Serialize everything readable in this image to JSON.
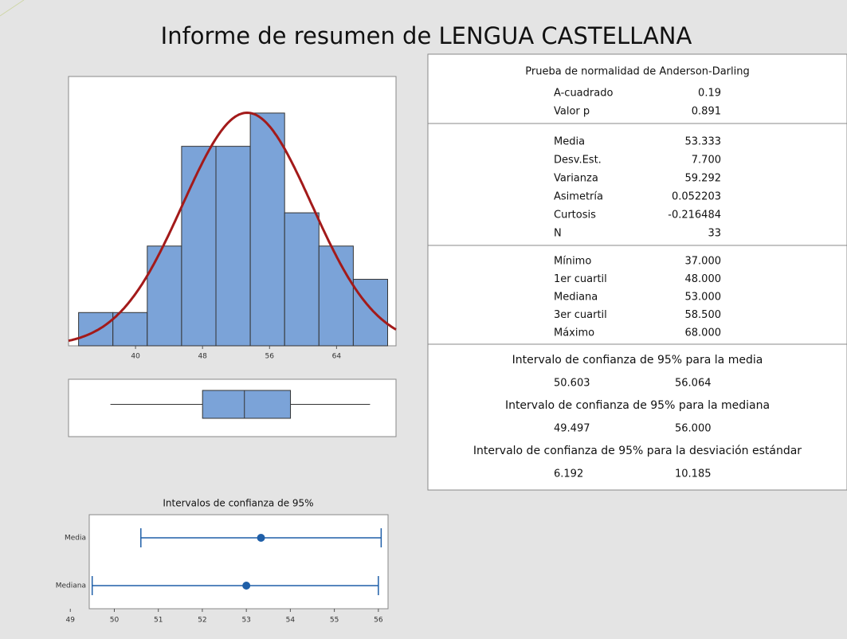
{
  "title": "Informe de resumen de LENGUA CASTELLANA",
  "chart_data": [
    {
      "type": "histogram",
      "bins": [
        33.2,
        37.3,
        41.4,
        45.5,
        49.6,
        53.7,
        57.8,
        61.9,
        66,
        70.1
      ],
      "values": [
        1,
        1,
        3,
        6,
        6,
        7,
        4,
        3,
        2
      ],
      "color": "#7ba3d8",
      "normal_fit": {
        "mean": 53.333,
        "sd": 7.7,
        "color": "#a31a1a"
      },
      "xlim": [
        32,
        71.1
      ],
      "ylim": [
        0,
        8.1
      ],
      "xticks": [
        40,
        48,
        56,
        64
      ]
    },
    {
      "type": "box",
      "min": 37,
      "q1": 48,
      "median": 53,
      "q3": 58.5,
      "max": 68,
      "color": "#7ba3d8",
      "xlim": [
        32,
        71.1
      ]
    },
    {
      "type": "interval",
      "title": "Intervalos de confianza de 95%",
      "categories": [
        "Media",
        "Mediana"
      ],
      "estimates": [
        53.333,
        53
      ],
      "lower": [
        50.603,
        49.497
      ],
      "upper": [
        56.064,
        56
      ],
      "color": "#1f5fa8",
      "xlim": [
        49.43,
        56.22
      ],
      "xticks": [
        49,
        50,
        51,
        52,
        53,
        54,
        55,
        56
      ]
    }
  ],
  "stats": {
    "normality": {
      "header": "Prueba de normalidad de Anderson-Darling",
      "rows": [
        [
          "A-cuadrado",
          "0.19"
        ],
        [
          "Valor p",
          "0.891"
        ]
      ]
    },
    "descriptives": [
      [
        "Media",
        "53.333"
      ],
      [
        "Desv.Est.",
        "7.700"
      ],
      [
        "Varianza",
        "59.292"
      ],
      [
        "Asimetría",
        "0.052203"
      ],
      [
        "Curtosis",
        "-0.216484"
      ],
      [
        "N",
        "33"
      ]
    ],
    "quantiles": [
      [
        "Mínimo",
        "37.000"
      ],
      [
        "1er cuartil",
        "48.000"
      ],
      [
        "Mediana",
        "53.000"
      ],
      [
        "3er cuartil",
        "58.500"
      ],
      [
        "Máximo",
        "68.000"
      ]
    ],
    "intervals": [
      {
        "header": "Intervalo de confianza de 95% para la media",
        "values": [
          "50.603",
          "56.064"
        ]
      },
      {
        "header": "Intervalo de confianza de 95% para la mediana",
        "values": [
          "49.497",
          "56.000"
        ]
      },
      {
        "header": "Intervalo de confianza de 95% para la desviación estándar",
        "values": [
          "6.192",
          "10.185"
        ]
      }
    ]
  }
}
